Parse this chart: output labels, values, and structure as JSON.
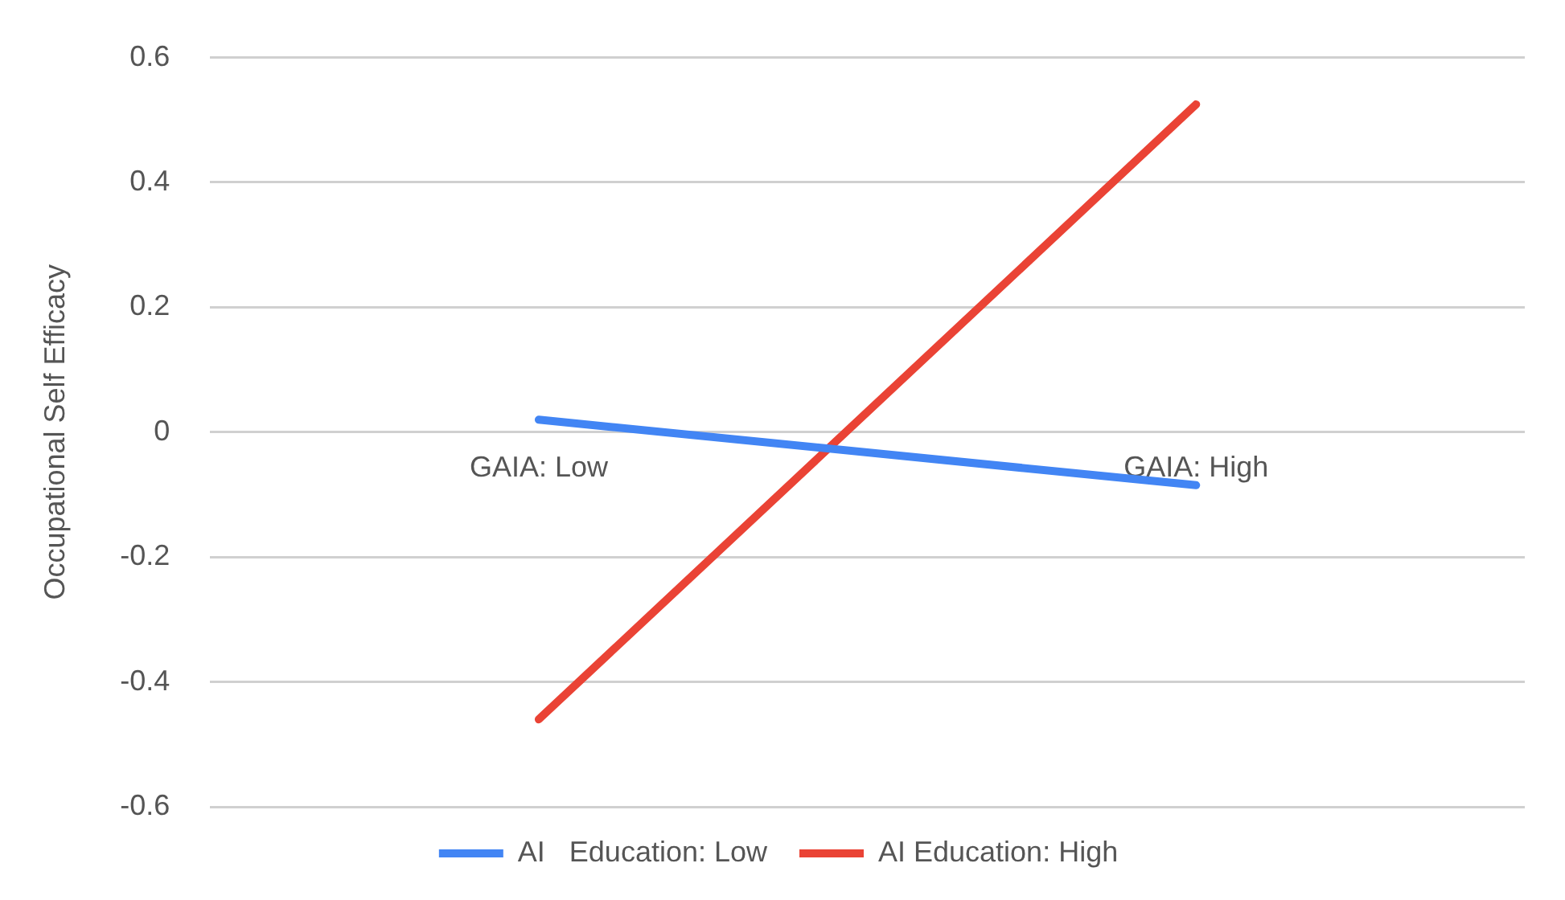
{
  "chart_data": {
    "type": "line",
    "ylabel": "Occupational Self Efficacy",
    "categories": [
      "GAIA: Low",
      "GAIA: High"
    ],
    "series": [
      {
        "name": "AI   Education: Low",
        "color": "#4285f4",
        "values": [
          0.02,
          -0.085
        ]
      },
      {
        "name": "AI Education: High",
        "color": "#ea4335",
        "values": [
          -0.46,
          0.525
        ]
      }
    ],
    "ylim": [
      -0.6,
      0.6
    ],
    "yticks": [
      -0.6,
      -0.4,
      -0.2,
      0,
      0.2,
      0.4,
      0.6
    ],
    "grid": "y",
    "legend": "bottom",
    "marker": "none",
    "line_style": "solid"
  }
}
